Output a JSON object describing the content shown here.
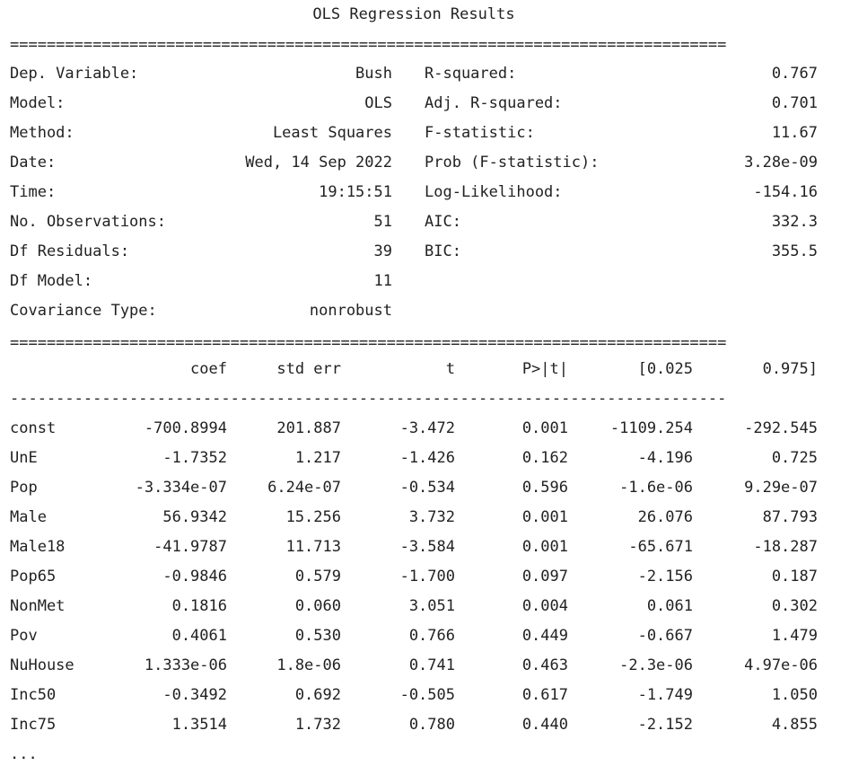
{
  "title": "OLS Regression Results",
  "rule_double": "==============================================================================",
  "rule_single": "------------------------------------------------------------------------------",
  "summary": [
    {
      "left_label": "Dep. Variable:",
      "left_value": "Bush",
      "right_label": "R-squared:",
      "right_value": "0.767"
    },
    {
      "left_label": "Model:",
      "left_value": "OLS",
      "right_label": "Adj. R-squared:",
      "right_value": "0.701"
    },
    {
      "left_label": "Method:",
      "left_value": "Least Squares",
      "right_label": "F-statistic:",
      "right_value": "11.67"
    },
    {
      "left_label": "Date:",
      "left_value": "Wed, 14 Sep 2022",
      "right_label": "Prob (F-statistic):",
      "right_value": "3.28e-09"
    },
    {
      "left_label": "Time:",
      "left_value": "19:15:51",
      "right_label": "Log-Likelihood:",
      "right_value": "-154.16"
    },
    {
      "left_label": "No. Observations:",
      "left_value": "51",
      "right_label": "AIC:",
      "right_value": "332.3"
    },
    {
      "left_label": "Df Residuals:",
      "left_value": "39",
      "right_label": "BIC:",
      "right_value": "355.5"
    },
    {
      "left_label": "Df Model:",
      "left_value": "11",
      "right_label": "",
      "right_value": ""
    },
    {
      "left_label": "Covariance Type:",
      "left_value": "nonrobust",
      "right_label": "",
      "right_value": ""
    }
  ],
  "coef_headers": [
    "coef",
    "std err",
    "t",
    "P>|t|",
    "[0.025",
    "0.975]"
  ],
  "coef_rows": [
    {
      "name": "const",
      "vals": [
        "-700.8994",
        "201.887",
        "-3.472",
        "0.001",
        "-1109.254",
        "-292.545"
      ]
    },
    {
      "name": "UnE",
      "vals": [
        "-1.7352",
        "1.217",
        "-1.426",
        "0.162",
        "-4.196",
        "0.725"
      ]
    },
    {
      "name": "Pop",
      "vals": [
        "-3.334e-07",
        "6.24e-07",
        "-0.534",
        "0.596",
        "-1.6e-06",
        "9.29e-07"
      ]
    },
    {
      "name": "Male",
      "vals": [
        "56.9342",
        "15.256",
        "3.732",
        "0.001",
        "26.076",
        "87.793"
      ]
    },
    {
      "name": "Male18",
      "vals": [
        "-41.9787",
        "11.713",
        "-3.584",
        "0.001",
        "-65.671",
        "-18.287"
      ]
    },
    {
      "name": "Pop65",
      "vals": [
        "-0.9846",
        "0.579",
        "-1.700",
        "0.097",
        "-2.156",
        "0.187"
      ]
    },
    {
      "name": "NonMet",
      "vals": [
        "0.1816",
        "0.060",
        "3.051",
        "0.004",
        "0.061",
        "0.302"
      ]
    },
    {
      "name": "Pov",
      "vals": [
        "0.4061",
        "0.530",
        "0.766",
        "0.449",
        "-0.667",
        "1.479"
      ]
    },
    {
      "name": "NuHouse",
      "vals": [
        "1.333e-06",
        "1.8e-06",
        "0.741",
        "0.463",
        "-2.3e-06",
        "4.97e-06"
      ]
    },
    {
      "name": "Inc50",
      "vals": [
        "-0.3492",
        "0.692",
        "-0.505",
        "0.617",
        "-1.749",
        "1.050"
      ]
    },
    {
      "name": "Inc75",
      "vals": [
        "1.3514",
        "1.732",
        "0.780",
        "0.440",
        "-2.152",
        "4.855"
      ]
    }
  ],
  "ellipsis": "..."
}
